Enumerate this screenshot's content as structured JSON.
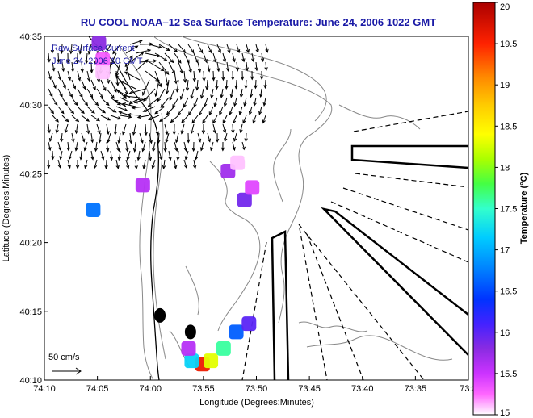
{
  "chart_data": {
    "type": "heatmap",
    "title": "RU COOL   NOAA–12  Sea Surface Temperature:  June 24, 2006 1022 GMT",
    "xlabel": "Longitude (Degrees:Minutes)",
    "ylabel": "Latitude (Degrees:Minutes)",
    "x_ticks": [
      "74:10",
      "74:05",
      "74:00",
      "73:55",
      "73:50",
      "73:45",
      "73:40",
      "73:35",
      "73:3"
    ],
    "y_ticks": [
      "40:35",
      "40:30",
      "40:25",
      "40:20",
      "40:15",
      "40:10"
    ],
    "xlim": [
      -74.1667,
      -73.5
    ],
    "ylim": [
      40.1667,
      40.5833
    ],
    "legend": {
      "line1": "Raw Surface Current",
      "line2": "June 24, 2006 10 GMT",
      "scale_label": "50 cm/s"
    },
    "colorbar": {
      "label": "Temperature (°C)",
      "ticks": [
        "20",
        "19.5",
        "19",
        "18.5",
        "18",
        "17.5",
        "17",
        "16.5",
        "16",
        "15.5",
        "15"
      ],
      "range": [
        15,
        20
      ]
    },
    "sst_patches": [
      {
        "lon": -74.081,
        "lat": 40.575,
        "temp": 15.8
      },
      {
        "lon": -74.075,
        "lat": 40.555,
        "temp": 15.3
      },
      {
        "lon": -74.075,
        "lat": 40.54,
        "temp": 15.1
      },
      {
        "lon": -74.09,
        "lat": 40.373,
        "temp": 16.7
      },
      {
        "lon": -74.012,
        "lat": 40.403,
        "temp": 15.6
      },
      {
        "lon": -73.878,
        "lat": 40.42,
        "temp": 15.7
      },
      {
        "lon": -73.863,
        "lat": 40.43,
        "temp": 15.1
      },
      {
        "lon": -73.841,
        "lat": 40.44,
        "temp": 15.0
      },
      {
        "lon": -73.852,
        "lat": 40.385,
        "temp": 15.9
      },
      {
        "lon": -73.84,
        "lat": 40.4,
        "temp": 15.4
      },
      {
        "lon": -73.918,
        "lat": 40.186,
        "temp": 19.6
      },
      {
        "lon": -73.905,
        "lat": 40.19,
        "temp": 18.3
      },
      {
        "lon": -73.935,
        "lat": 40.19,
        "temp": 17.2
      },
      {
        "lon": -73.885,
        "lat": 40.205,
        "temp": 17.6
      },
      {
        "lon": -73.865,
        "lat": 40.225,
        "temp": 16.6
      },
      {
        "lon": -73.845,
        "lat": 40.235,
        "temp": 16.0
      },
      {
        "lon": -73.94,
        "lat": 40.205,
        "temp": 15.6
      }
    ],
    "buoys": [
      {
        "lon": -73.985,
        "lat": 40.245
      },
      {
        "lon": -73.937,
        "lat": 40.225
      }
    ]
  },
  "colors": {
    "title": "#1a1aa6",
    "arrows": "#000000",
    "coast": "#000000",
    "bathymetry": "#888888",
    "patch_edge": "#ff00ff"
  }
}
